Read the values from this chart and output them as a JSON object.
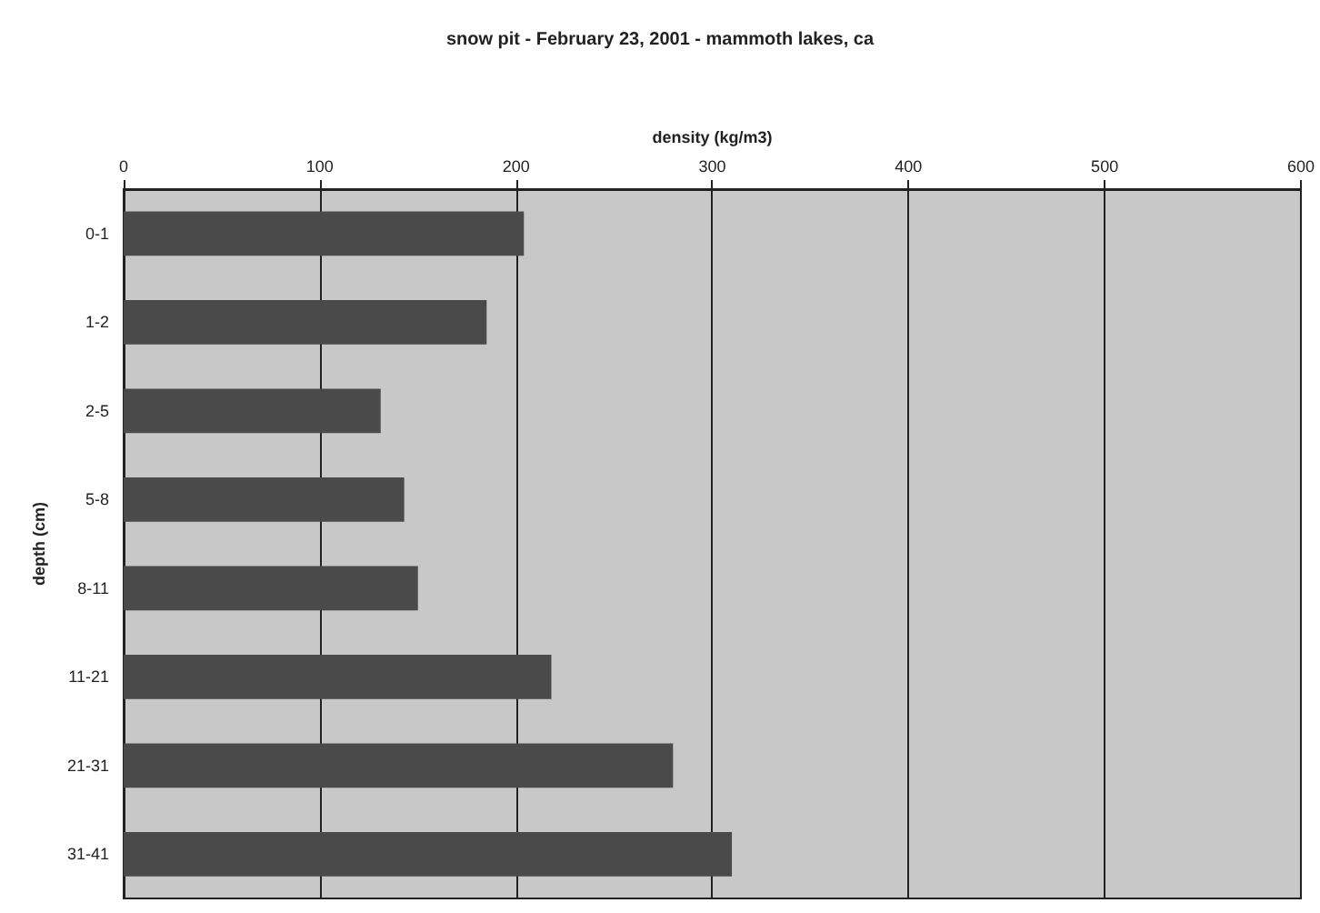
{
  "chart_data": {
    "type": "bar",
    "orientation": "horizontal",
    "title": "snow pit - February 23, 2001 - mammoth lakes, ca",
    "xlabel": "density (kg/m3)",
    "ylabel": "depth (cm)",
    "categories": [
      "0-1",
      "1-2",
      "2-5",
      "5-8",
      "8-11",
      "11-21",
      "21-31",
      "31-41"
    ],
    "values": [
      204,
      185,
      131,
      143,
      150,
      218,
      280,
      310
    ],
    "color": "#4a4a4a",
    "xlim": [
      0,
      600
    ],
    "xticks": [
      0,
      100,
      200,
      300,
      400,
      500,
      600
    ],
    "grid": "x"
  }
}
